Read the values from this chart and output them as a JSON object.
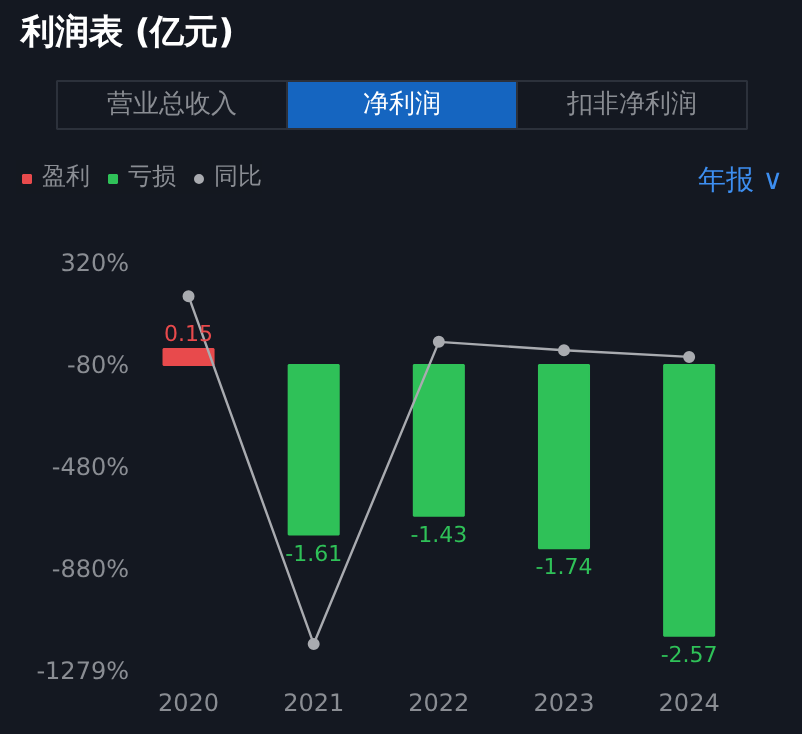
{
  "chart_data": {
    "type": "bar",
    "title": "利润表 (亿元)",
    "annotations": [
      "营业总收入",
      "净利润",
      "扣非净利润",
      "年报 ∨"
    ],
    "categories": [
      "2020",
      "2021",
      "2022",
      "2023",
      "2024"
    ],
    "series": [
      {
        "name": "盈利",
        "color": "#e84a4c",
        "axis": "y2",
        "values": [
          0.15,
          null,
          null,
          null,
          null
        ],
        "value_labels": [
          "0.15",
          null,
          null,
          null,
          null
        ]
      },
      {
        "name": "亏损",
        "color": "#2fc158",
        "axis": "y2",
        "values": [
          null,
          -1.61,
          -1.43,
          -1.74,
          -2.57
        ],
        "value_labels": [
          null,
          "-1.61",
          "-1.43",
          "-1.74",
          "-2.57"
        ]
      },
      {
        "name": "同比",
        "type": "line",
        "color": "#a9abb0",
        "axis": "y",
        "values": [
          190,
          -1173,
          11,
          -22,
          -48
        ]
      }
    ],
    "ylim": [
      -1279,
      320
    ],
    "yticks": [
      {
        "value": 320,
        "label": "320%"
      },
      {
        "value": -80,
        "label": "-80%"
      },
      {
        "value": -480,
        "label": "-480%"
      },
      {
        "value": -880,
        "label": "-880%"
      },
      {
        "value": -1279,
        "label": "-1279%"
      }
    ],
    "legend": "top left",
    "grid": false,
    "marker": "circle",
    "line_style": "solid"
  }
}
